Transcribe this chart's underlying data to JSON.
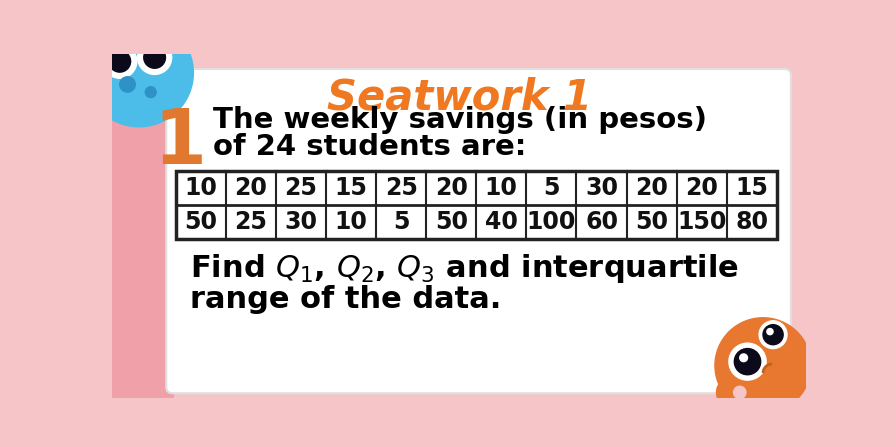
{
  "title": "Seatwork 1",
  "title_color": "#F07820",
  "problem_number": "1",
  "problem_number_color": "#E07830",
  "problem_text_line1": "The weekly savings (in pesos)",
  "problem_text_line2": "of 24 students are:",
  "row1": [
    10,
    20,
    25,
    15,
    25,
    20,
    10,
    5,
    30,
    20,
    20,
    15
  ],
  "row2": [
    50,
    25,
    30,
    10,
    5,
    50,
    40,
    100,
    60,
    50,
    150,
    80
  ],
  "find_text_line2": "range of the data.",
  "bg_color": "#F5C5C8",
  "card_color": "#FFFFFF",
  "table_border_color": "#222222",
  "text_color": "#111111",
  "bold_text_color": "#000000",
  "blue_monster_color": "#4BBDE8",
  "orange_monster_color": "#E87830",
  "pink_bg_strip": "#F0A0A8"
}
